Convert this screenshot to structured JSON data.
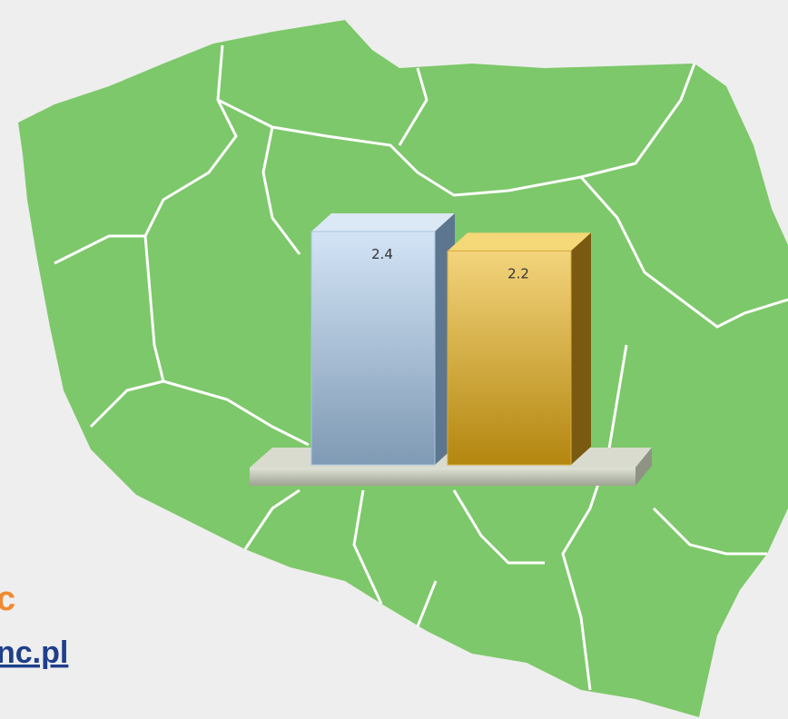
{
  "chart_data": {
    "type": "bar3d",
    "categories": [
      null,
      null
    ],
    "values": [
      2.4,
      2.2
    ],
    "colors": [
      "#a9c3de",
      "#d9a93a"
    ]
  },
  "footer": {
    "brand": "c",
    "link": "nc.pl"
  }
}
